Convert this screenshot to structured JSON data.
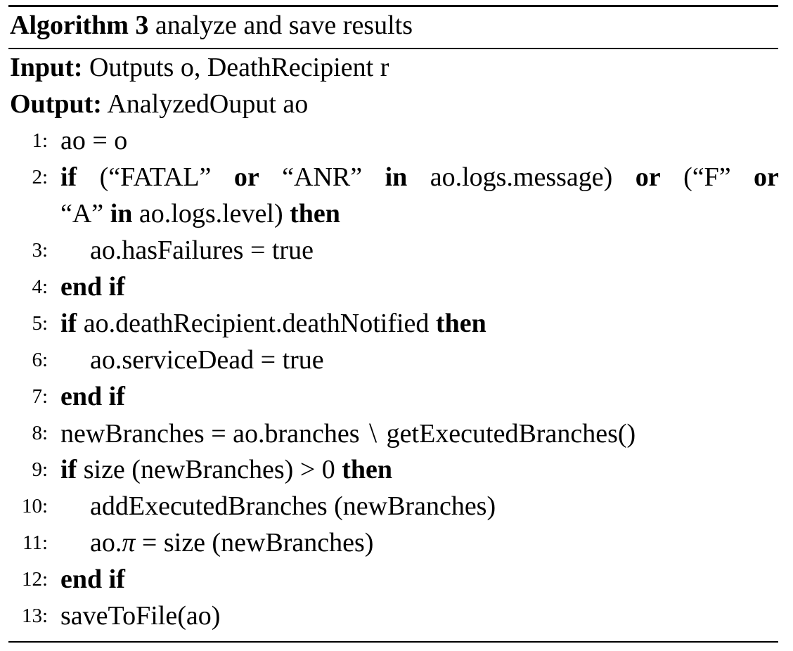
{
  "algorithm": {
    "label": "Algorithm 3",
    "title": "analyze and save results",
    "input_label": "Input:",
    "input_text": "Outputs o, DeathRecipient r",
    "output_label": "Output:",
    "output_text": "AnalyzedOuput ao"
  },
  "keywords": {
    "if": "if",
    "then": "then",
    "end_if": "end if",
    "or": "or",
    "in": "in"
  },
  "lines": [
    {
      "num": "1:",
      "text": "ao = o"
    },
    {
      "num": "2:",
      "p1": "(“FATAL”",
      "p2": "“ANR”",
      "p3": "ao.logs.message)",
      "p4": "(“F”",
      "p5": "“A”",
      "p6": "ao.logs.level)"
    },
    {
      "num": "3:",
      "text": "ao.hasFailures = true"
    },
    {
      "num": "4:"
    },
    {
      "num": "5:",
      "text": "ao.deathRecipient.deathNotified"
    },
    {
      "num": "6:",
      "text": "ao.serviceDead = true"
    },
    {
      "num": "7:"
    },
    {
      "num": "8:",
      "left": "newBranches = ao.branches",
      "op": "\\",
      "right": "getExecutedBranches()"
    },
    {
      "num": "9:",
      "left": "size (newBranches)",
      "op": ">",
      "right": "0"
    },
    {
      "num": "10:",
      "text": "addExecutedBranches (newBranches)"
    },
    {
      "num": "11:",
      "prefix": "ao.",
      "pi": "π",
      "suffix": " = size (newBranches)"
    },
    {
      "num": "12:"
    },
    {
      "num": "13:",
      "text": "saveToFile(ao)"
    }
  ]
}
